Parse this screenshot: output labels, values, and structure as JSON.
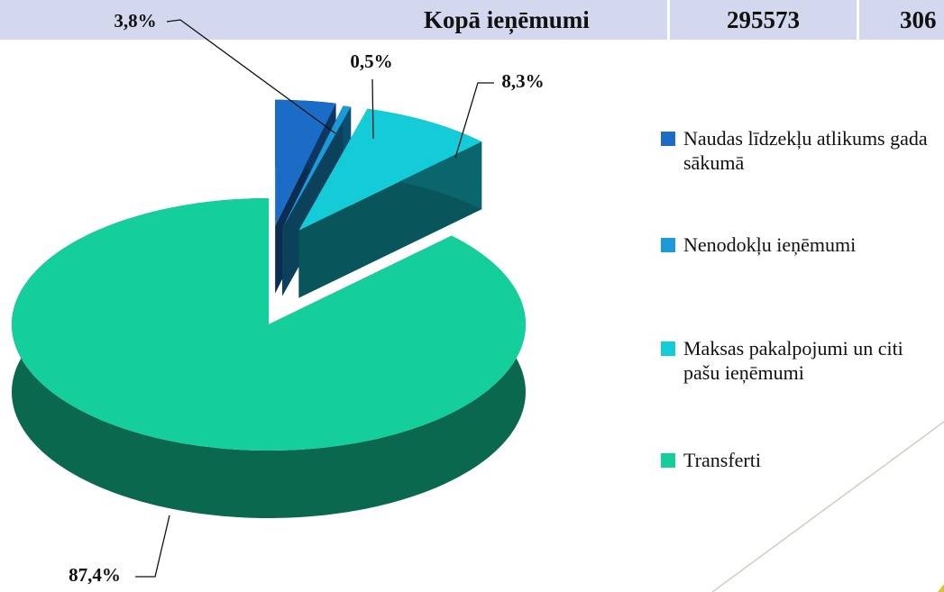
{
  "header": {
    "cells": [
      "Kopā ieņēmumi",
      "295573",
      "306"
    ]
  },
  "chart_data": {
    "type": "pie",
    "categories": [
      "Naudas līdzekļu atlikums gada sākumā",
      "Nenodokļu ieņēmumi",
      "Maksas pakalpojumi un citi pašu ieņēmumi",
      "Transferti"
    ],
    "values": [
      3.8,
      0.5,
      8.3,
      87.4
    ],
    "value_labels": [
      "3,8%",
      "0,5%",
      "8,3%",
      "87,4%"
    ],
    "colors": [
      "#1a6cc6",
      "#1a9ad9",
      "#14ccd8",
      "#14cf9c"
    ],
    "legend": "right"
  }
}
